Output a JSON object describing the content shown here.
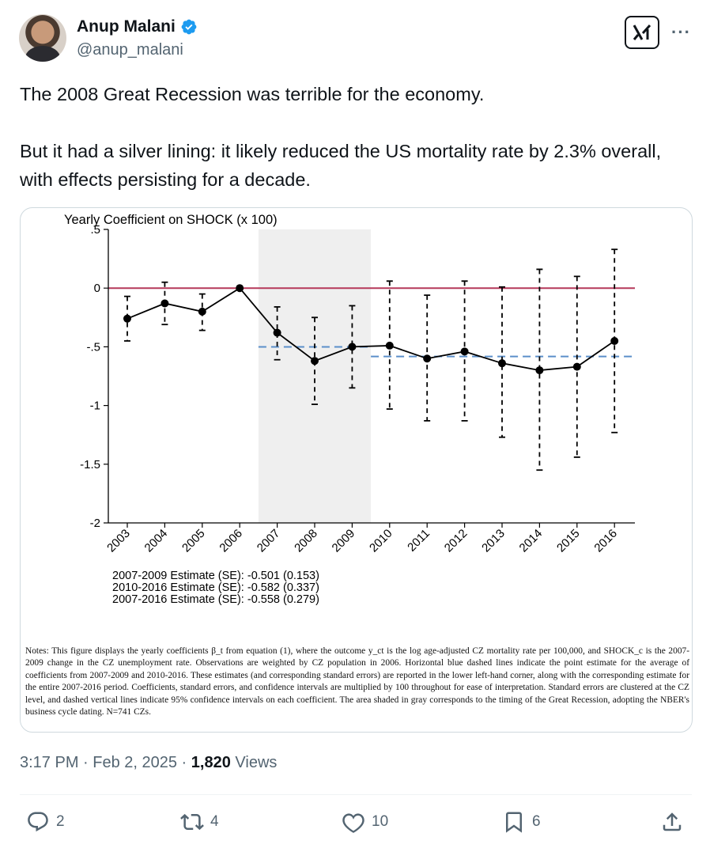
{
  "author": {
    "name": "Anup Malani",
    "handle": "@anup_malani",
    "verified": true
  },
  "tweet": {
    "paragraph1": "The 2008 Great Recession was terrible for the economy.",
    "paragraph2": "But it had a silver lining: it likely reduced the US mortality rate by 2.3% overall, with effects persisting for a decade."
  },
  "figure": {
    "estimates": [
      "2007-2009 Estimate (SE): -0.501 (0.153)",
      "2010-2016 Estimate (SE): -0.582 (0.337)",
      "2007-2016 Estimate (SE): -0.558 (0.279)"
    ],
    "notes": "Notes: This figure displays the yearly coefficients β_t from equation (1), where the outcome y_ct is the log age-adjusted CZ mortality rate per 100,000, and SHOCK_c is the 2007-2009 change in the CZ unemployment rate. Observations are weighted by CZ population in 2006. Horizontal blue dashed lines indicate the point estimate for the average of coefficients from 2007-2009 and 2010-2016. These estimates (and corresponding standard errors) are reported in the lower left-hand corner, along with the corresponding estimate for the entire 2007-2016 period. Coefficients, standard errors, and confidence intervals are multiplied by 100 throughout for ease of interpretation. Standard errors are clustered at the CZ level, and dashed vertical lines indicate 95% confidence intervals on each coefficient. The area shaded in gray corresponds to the timing of the Great Recession, adopting the NBER's business cycle dating. N=741 CZs."
  },
  "chart_data": {
    "type": "line",
    "title": "Yearly Coefficient on SHOCK (x 100)",
    "xlabel": "",
    "ylabel": "",
    "ylim": [
      -2,
      0.5
    ],
    "yticks": [
      ".5",
      "0",
      "-.5",
      "-1",
      "-1.5",
      "-2"
    ],
    "ytick_values": [
      0.5,
      0,
      -0.5,
      -1,
      -1.5,
      -2
    ],
    "categories": [
      "2003",
      "2004",
      "2005",
      "2006",
      "2007",
      "2008",
      "2009",
      "2010",
      "2011",
      "2012",
      "2013",
      "2014",
      "2015",
      "2016"
    ],
    "values": [
      -0.26,
      -0.13,
      -0.2,
      0.0,
      -0.38,
      -0.62,
      -0.5,
      -0.49,
      -0.6,
      -0.54,
      -0.64,
      -0.7,
      -0.67,
      -0.45
    ],
    "ci_upper": [
      -0.07,
      0.05,
      -0.05,
      0.0,
      -0.16,
      -0.25,
      -0.15,
      0.06,
      -0.06,
      0.06,
      0.01,
      0.16,
      0.1,
      0.33
    ],
    "ci_lower": [
      -0.45,
      -0.31,
      -0.36,
      0.0,
      -0.61,
      -0.99,
      -0.85,
      -1.03,
      -1.13,
      -1.13,
      -1.27,
      -1.55,
      -1.44,
      -1.23
    ],
    "shaded_range": [
      "2007",
      "2009"
    ],
    "reference_line": 0,
    "avg_lines": [
      {
        "from": "2007",
        "to": "2009",
        "value": -0.501
      },
      {
        "from": "2010",
        "to": "2016",
        "value": -0.582
      }
    ],
    "colors": {
      "zero_line": "#b5385a",
      "avg_line": "#5b8fc9",
      "shade": "#efefef",
      "series": "#000000"
    },
    "grid": false
  },
  "meta": {
    "time": "3:17 PM · Feb 2, 2025 · ",
    "views_count": "1,820",
    "views_label": " Views"
  },
  "actions": {
    "replies": "2",
    "reposts": "4",
    "likes": "10",
    "bookmarks": "6"
  },
  "icons": [
    "verified-badge-icon",
    "grok-icon",
    "more-icon",
    "reply-icon",
    "repost-icon",
    "like-icon",
    "bookmark-icon",
    "share-icon"
  ],
  "colors": {
    "verified": "#1d9bf0",
    "secondary_text": "#536471"
  }
}
